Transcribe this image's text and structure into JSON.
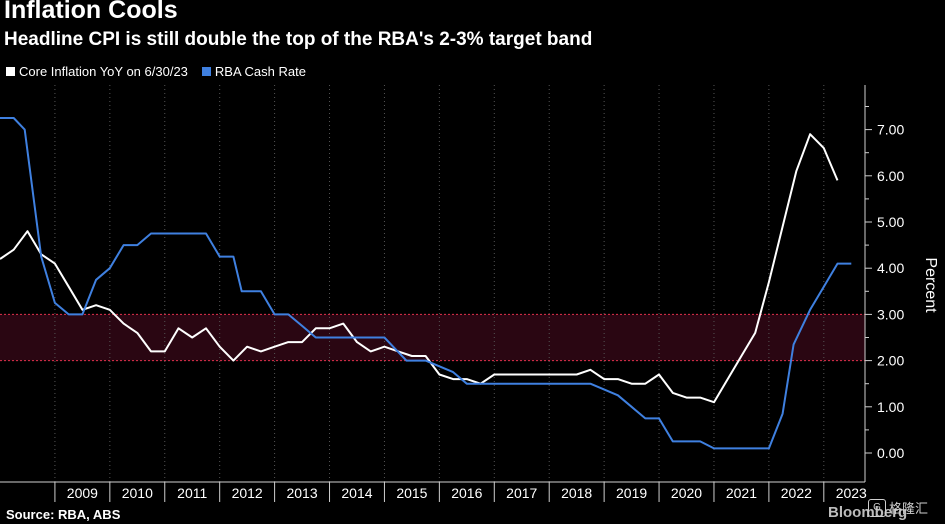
{
  "chart_data": {
    "type": "line",
    "title": "Inflation Cools",
    "subtitle": "Headline CPI is still double the top of the RBA's 2-3% target band",
    "ylabel": "Percent",
    "ylim": [
      -0.5,
      7.8
    ],
    "yticks": [
      0,
      1,
      2,
      3,
      4,
      5,
      6,
      7
    ],
    "ytick_labels": [
      "0.00",
      "1.00",
      "2.00",
      "3.00",
      "4.00",
      "5.00",
      "6.00",
      "7.00"
    ],
    "xlim": [
      2008.0,
      2023.75
    ],
    "xtick_labels": [
      "2009",
      "2010",
      "2011",
      "2012",
      "2013",
      "2014",
      "2015",
      "2016",
      "2017",
      "2018",
      "2019",
      "2020",
      "2021",
      "2022",
      "2023"
    ],
    "target_band": [
      2,
      3
    ],
    "grid": "vertical dotted",
    "legend_placement": "top-left",
    "series": [
      {
        "name": "Core Inflation YoY on 6/30/23",
        "color": "#ffffff",
        "points": [
          [
            2008.0,
            4.2
          ],
          [
            2008.25,
            4.4
          ],
          [
            2008.5,
            4.8
          ],
          [
            2008.75,
            4.3
          ],
          [
            2009.0,
            4.1
          ],
          [
            2009.25,
            3.6
          ],
          [
            2009.5,
            3.1
          ],
          [
            2009.75,
            3.2
          ],
          [
            2010.0,
            3.1
          ],
          [
            2010.25,
            2.8
          ],
          [
            2010.5,
            2.6
          ],
          [
            2010.75,
            2.2
          ],
          [
            2011.0,
            2.2
          ],
          [
            2011.25,
            2.7
          ],
          [
            2011.5,
            2.5
          ],
          [
            2011.75,
            2.7
          ],
          [
            2012.0,
            2.3
          ],
          [
            2012.25,
            2.0
          ],
          [
            2012.5,
            2.3
          ],
          [
            2012.75,
            2.2
          ],
          [
            2013.0,
            2.3
          ],
          [
            2013.25,
            2.4
          ],
          [
            2013.5,
            2.4
          ],
          [
            2013.75,
            2.7
          ],
          [
            2014.0,
            2.7
          ],
          [
            2014.25,
            2.8
          ],
          [
            2014.5,
            2.4
          ],
          [
            2014.75,
            2.2
          ],
          [
            2015.0,
            2.3
          ],
          [
            2015.25,
            2.2
          ],
          [
            2015.5,
            2.1
          ],
          [
            2015.75,
            2.1
          ],
          [
            2016.0,
            1.7
          ],
          [
            2016.25,
            1.6
          ],
          [
            2016.5,
            1.6
          ],
          [
            2016.75,
            1.5
          ],
          [
            2017.0,
            1.7
          ],
          [
            2017.25,
            1.7
          ],
          [
            2017.5,
            1.7
          ],
          [
            2017.75,
            1.7
          ],
          [
            2018.0,
            1.7
          ],
          [
            2018.25,
            1.7
          ],
          [
            2018.5,
            1.7
          ],
          [
            2018.75,
            1.8
          ],
          [
            2019.0,
            1.6
          ],
          [
            2019.25,
            1.6
          ],
          [
            2019.5,
            1.5
          ],
          [
            2019.75,
            1.5
          ],
          [
            2020.0,
            1.7
          ],
          [
            2020.25,
            1.3
          ],
          [
            2020.5,
            1.2
          ],
          [
            2020.75,
            1.2
          ],
          [
            2021.0,
            1.1
          ],
          [
            2021.25,
            1.6
          ],
          [
            2021.5,
            2.1
          ],
          [
            2021.75,
            2.6
          ],
          [
            2022.0,
            3.7
          ],
          [
            2022.25,
            4.9
          ],
          [
            2022.5,
            6.1
          ],
          [
            2022.75,
            6.9
          ],
          [
            2023.0,
            6.6
          ],
          [
            2023.25,
            5.9
          ]
        ]
      },
      {
        "name": "RBA Cash Rate",
        "color": "#3f80e0",
        "points": [
          [
            2008.0,
            7.25
          ],
          [
            2008.25,
            7.25
          ],
          [
            2008.45,
            7.0
          ],
          [
            2008.75,
            4.25
          ],
          [
            2009.0,
            3.25
          ],
          [
            2009.25,
            3.0
          ],
          [
            2009.5,
            3.0
          ],
          [
            2009.75,
            3.75
          ],
          [
            2010.0,
            4.0
          ],
          [
            2010.25,
            4.5
          ],
          [
            2010.5,
            4.5
          ],
          [
            2010.75,
            4.75
          ],
          [
            2011.0,
            4.75
          ],
          [
            2011.75,
            4.75
          ],
          [
            2012.0,
            4.25
          ],
          [
            2012.25,
            4.25
          ],
          [
            2012.4,
            3.5
          ],
          [
            2012.75,
            3.5
          ],
          [
            2013.0,
            3.0
          ],
          [
            2013.25,
            3.0
          ],
          [
            2013.5,
            2.75
          ],
          [
            2013.75,
            2.5
          ],
          [
            2014.0,
            2.5
          ],
          [
            2014.5,
            2.5
          ],
          [
            2015.0,
            2.5
          ],
          [
            2015.2,
            2.25
          ],
          [
            2015.4,
            2.0
          ],
          [
            2015.75,
            2.0
          ],
          [
            2016.25,
            1.75
          ],
          [
            2016.5,
            1.5
          ],
          [
            2017.0,
            1.5
          ],
          [
            2018.0,
            1.5
          ],
          [
            2018.75,
            1.5
          ],
          [
            2019.25,
            1.25
          ],
          [
            2019.5,
            1.0
          ],
          [
            2019.75,
            0.75
          ],
          [
            2020.0,
            0.75
          ],
          [
            2020.25,
            0.25
          ],
          [
            2020.75,
            0.25
          ],
          [
            2021.0,
            0.1
          ],
          [
            2022.0,
            0.1
          ],
          [
            2022.25,
            0.85
          ],
          [
            2022.45,
            2.35
          ],
          [
            2022.75,
            3.1
          ],
          [
            2023.0,
            3.6
          ],
          [
            2023.25,
            4.1
          ],
          [
            2023.5,
            4.1
          ]
        ]
      }
    ]
  },
  "footer": {
    "source": "Source: RBA, ABS",
    "brand": "Bloomberg",
    "watermark": "格隆汇",
    "watermark_logo": "G"
  }
}
